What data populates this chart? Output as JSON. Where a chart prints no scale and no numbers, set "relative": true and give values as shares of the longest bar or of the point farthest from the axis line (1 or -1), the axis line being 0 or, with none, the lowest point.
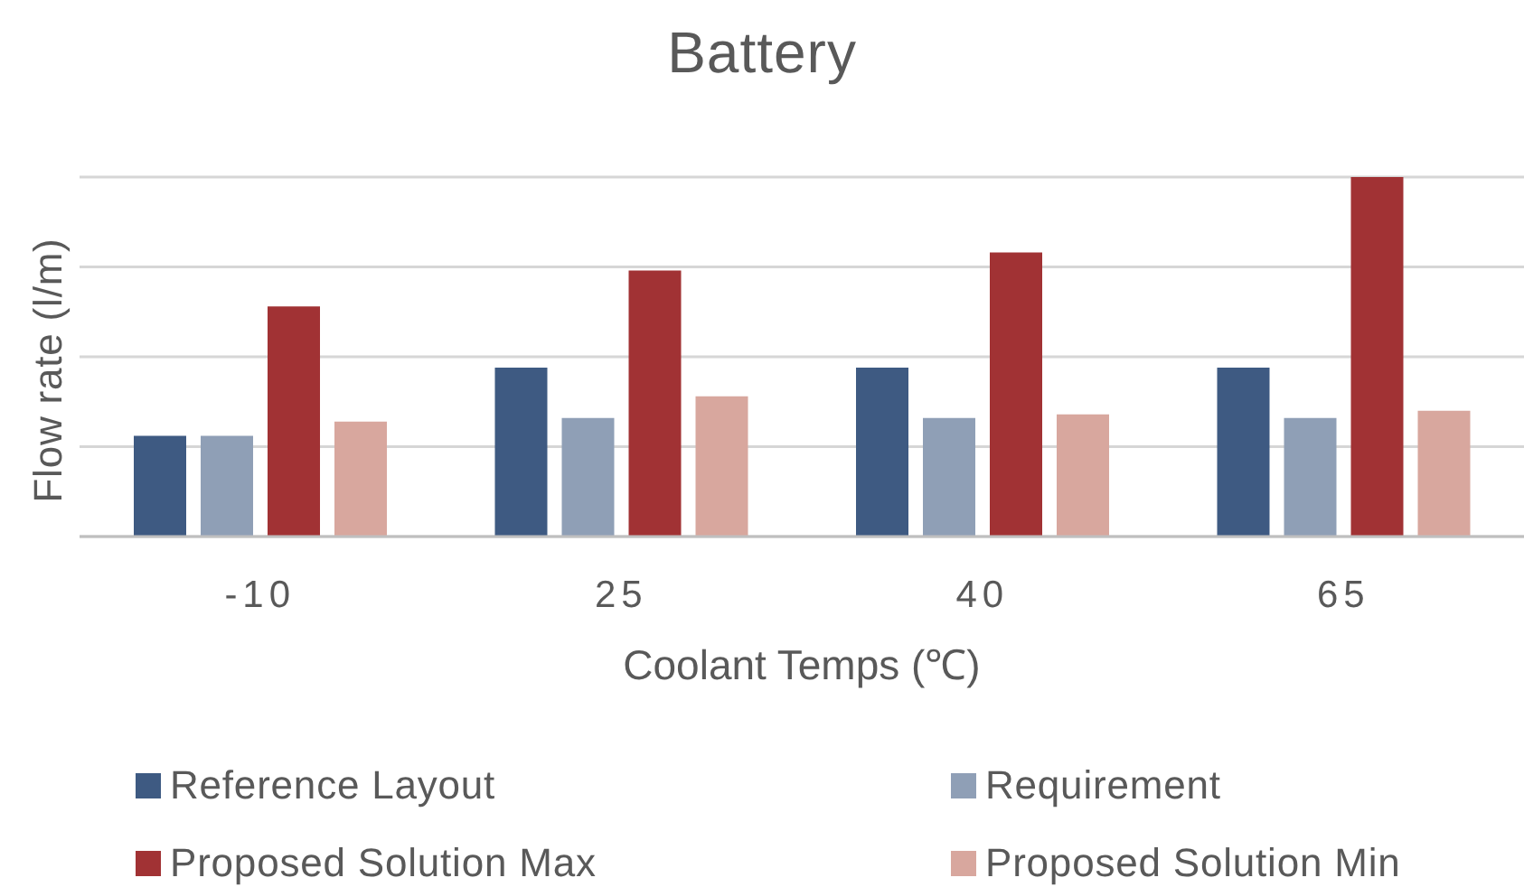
{
  "chart_data": {
    "type": "bar",
    "title": "Battery",
    "xlabel": "Coolant Temps (℃)",
    "ylabel": "Flow rate (l/m)",
    "categories": [
      "-10",
      "25",
      "40",
      "65"
    ],
    "relative": true,
    "grid": "y",
    "legend": "bottom",
    "series": [
      {
        "name": "Reference Layout",
        "color": "#3e5a82",
        "values": [
          0.28,
          0.47,
          0.47,
          0.47
        ]
      },
      {
        "name": "Requirement",
        "color": "#8f9fb6",
        "values": [
          0.28,
          0.33,
          0.33,
          0.33
        ]
      },
      {
        "name": "Proposed Solution Max",
        "color": "#a13234",
        "values": [
          0.64,
          0.74,
          0.79,
          1
        ]
      },
      {
        "name": "Proposed Solution Min",
        "color": "#d8a79e",
        "values": [
          0.32,
          0.39,
          0.34,
          0.35
        ]
      }
    ]
  }
}
